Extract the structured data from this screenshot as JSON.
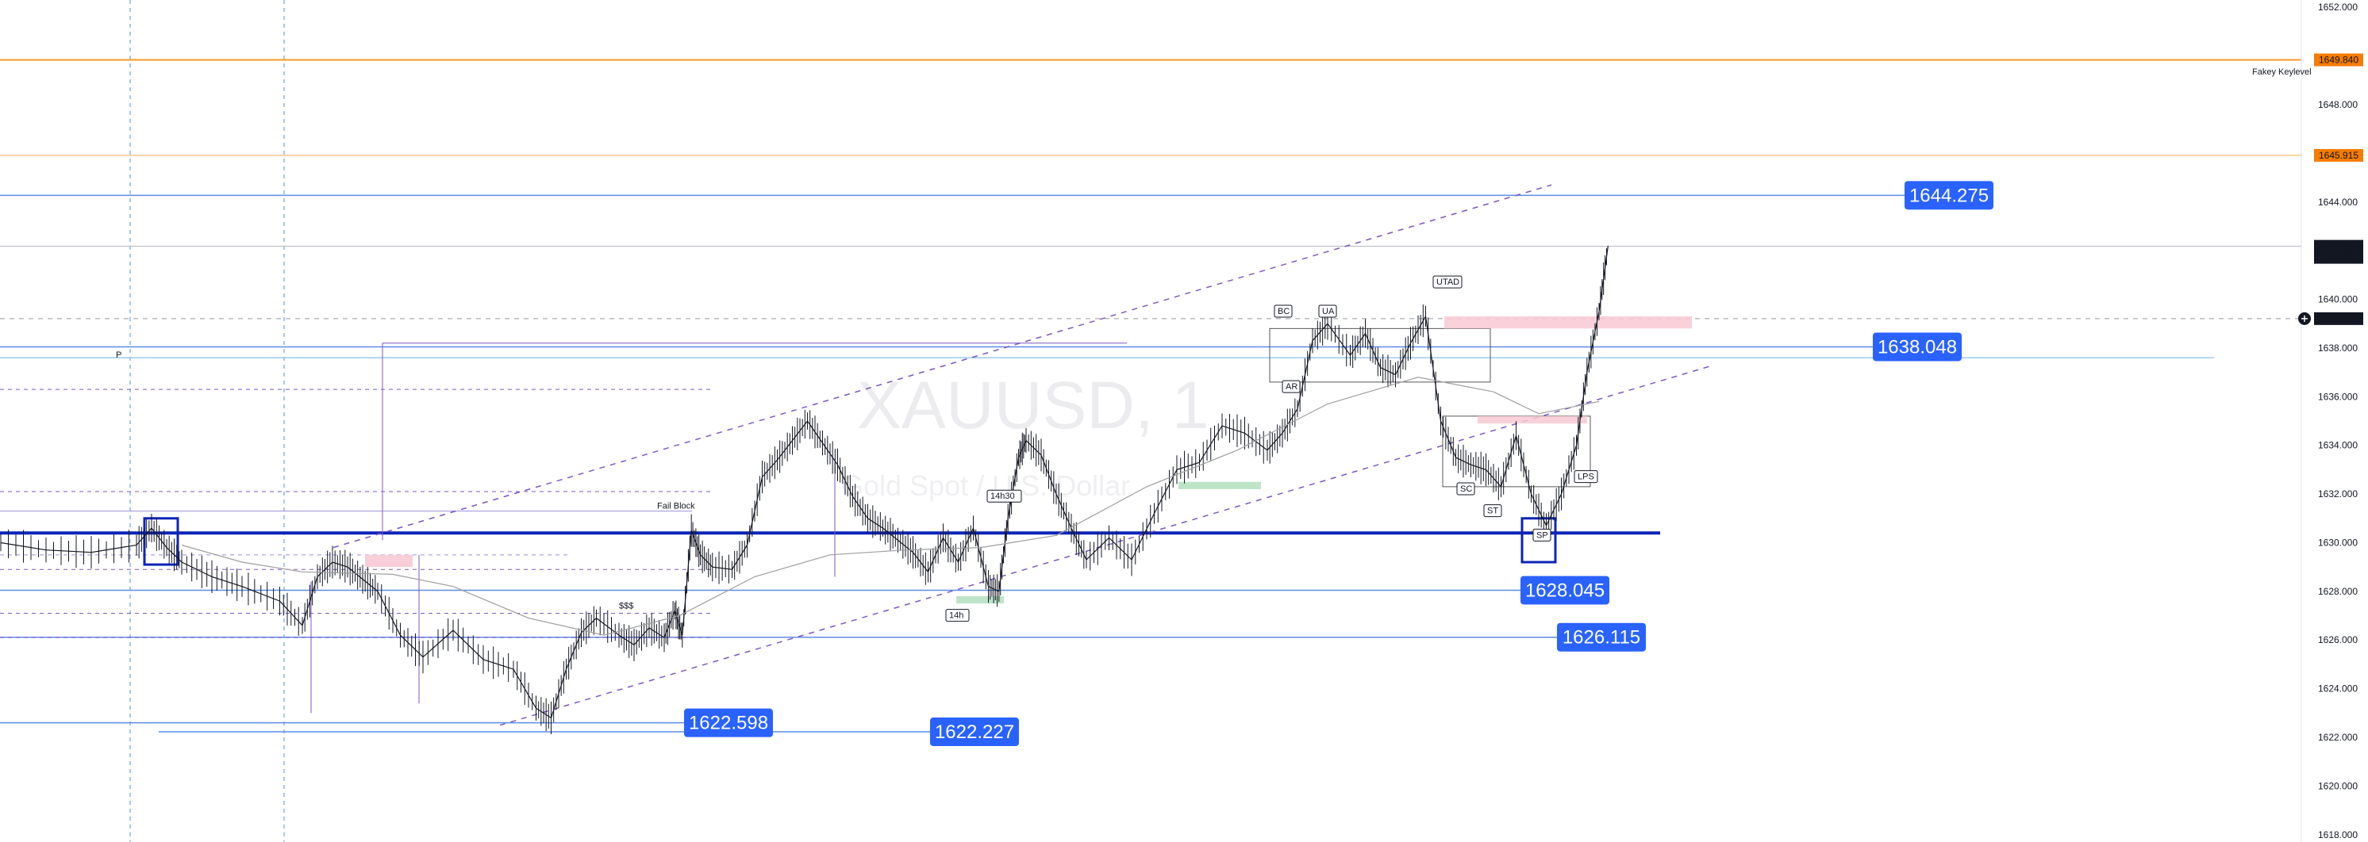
{
  "chart_data": {
    "type": "line",
    "symbol_watermark": "XAUUSD, 1",
    "description_watermark": "Gold Spot / U.S. Dollar",
    "y_axis": {
      "ticks": [
        "1652.000",
        "1648.000",
        "1646.000",
        "1644.000",
        "1642.000",
        "1640.000",
        "1638.000",
        "1636.000",
        "1634.000",
        "1632.000",
        "1630.000",
        "1628.000",
        "1626.000",
        "1624.000",
        "1622.000",
        "1620.000",
        "1618.000"
      ],
      "range": [
        1617.7,
        1652.3
      ]
    },
    "price_badges": [
      {
        "value": "1649.840",
        "price": 1649.84,
        "bg": "#f57c00",
        "text_color": "#ffffff",
        "line": "solid-orange"
      },
      {
        "value": "1645.915",
        "price": 1645.915,
        "bg": "#f57c00",
        "text_color": "#ffffff",
        "line": "thin-orange"
      },
      {
        "value": "1642.180",
        "sub": "00:33",
        "price": 1642.18,
        "bg": "#131722",
        "text_color": "#ffffff"
      },
      {
        "value": "1639.207",
        "price": 1639.207,
        "bg": "#131722",
        "text_color": "#ffffff",
        "crosshair": true
      }
    ],
    "key_level_label": "Fakey Keylevel",
    "horizontal_levels": [
      {
        "label": "1644.275",
        "price": 1644.275
      },
      {
        "label": "1638.048",
        "price": 1638.048
      },
      {
        "label": "1628.045",
        "price": 1628.045
      },
      {
        "label": "1626.115",
        "price": 1626.115
      },
      {
        "label": "1622.598",
        "price": 1622.598
      },
      {
        "label": "1622.227",
        "price": 1622.227
      }
    ],
    "main_level": {
      "price": 1630.4,
      "color": "#0d24b8"
    },
    "annotations": [
      "Fail Block",
      "$$$",
      "BC",
      "UA",
      "AR",
      "UTAD",
      "SC",
      "ST",
      "SP",
      "LPS",
      "14h",
      "14h30",
      "P"
    ],
    "series": [
      {
        "name": "",
        "t": [
          0,
          30,
          60,
          90,
          100,
          110,
          120,
          140,
          160,
          185,
          200,
          210,
          220,
          230,
          240,
          250,
          265,
          280,
          300,
          320,
          340,
          355,
          365,
          375,
          385,
          395,
          410,
          420,
          430,
          440,
          447,
          452,
          458,
          464,
          472,
          485,
          495,
          505,
          515,
          525,
          535,
          545,
          555,
          565,
          575,
          585,
          595,
          605,
          615,
          625,
          635,
          645,
          655,
          662,
          668,
          675,
          680,
          690,
          700,
          710,
          720,
          735,
          750,
          765,
          780,
          795,
          810,
          825,
          840,
          850,
          860,
          870,
          880,
          895,
          905,
          915,
          925,
          935,
          945,
          955,
          965,
          975,
          985,
          995,
          1005,
          1015,
          1025,
          1035,
          1045,
          1052,
          1060,
          1066
        ],
        "y": [
          1630.0,
          1629.7,
          1629.6,
          1629.9,
          1630.6,
          1629.8,
          1629.2,
          1628.6,
          1628.2,
          1627.6,
          1626.6,
          1628.6,
          1629.2,
          1629.0,
          1628.5,
          1628.0,
          1626.2,
          1625.3,
          1626.4,
          1625.2,
          1624.8,
          1623.2,
          1622.8,
          1624.8,
          1626.3,
          1626.9,
          1626.2,
          1625.8,
          1626.5,
          1626.1,
          1627.2,
          1626.2,
          1630.5,
          1629.5,
          1629.0,
          1628.9,
          1629.9,
          1632.7,
          1633.4,
          1634.2,
          1635.0,
          1634.1,
          1633.2,
          1631.9,
          1631.0,
          1630.6,
          1630.1,
          1629.6,
          1628.8,
          1630.2,
          1629.2,
          1630.6,
          1628.2,
          1628.0,
          1631.0,
          1633.5,
          1634.2,
          1633.6,
          1632.0,
          1630.6,
          1629.3,
          1630.2,
          1629.3,
          1631.2,
          1633.0,
          1633.3,
          1634.8,
          1634.5,
          1633.8,
          1634.5,
          1635.5,
          1638.3,
          1639.0,
          1637.7,
          1638.6,
          1637.2,
          1636.9,
          1638.2,
          1639.3,
          1635.0,
          1633.5,
          1633.2,
          1633.0,
          1632.3,
          1634.4,
          1632.0,
          1630.7,
          1632.0,
          1634.0,
          1637.0,
          1639.5,
          1642.2
        ]
      }
    ],
    "ma_series": {
      "name": "",
      "t": [
        120,
        160,
        200,
        260,
        300,
        350,
        400,
        450,
        500,
        550,
        600,
        650,
        700,
        760,
        820,
        880,
        940,
        990,
        1020,
        1060
      ],
      "y": [
        1629.9,
        1629.2,
        1628.8,
        1628.7,
        1628.2,
        1626.9,
        1626.2,
        1627.0,
        1628.6,
        1629.5,
        1629.7,
        1629.8,
        1630.3,
        1632.3,
        1633.8,
        1635.7,
        1636.8,
        1636.2,
        1635.3,
        1635.8
      ]
    },
    "grid": false,
    "legend": "none"
  }
}
